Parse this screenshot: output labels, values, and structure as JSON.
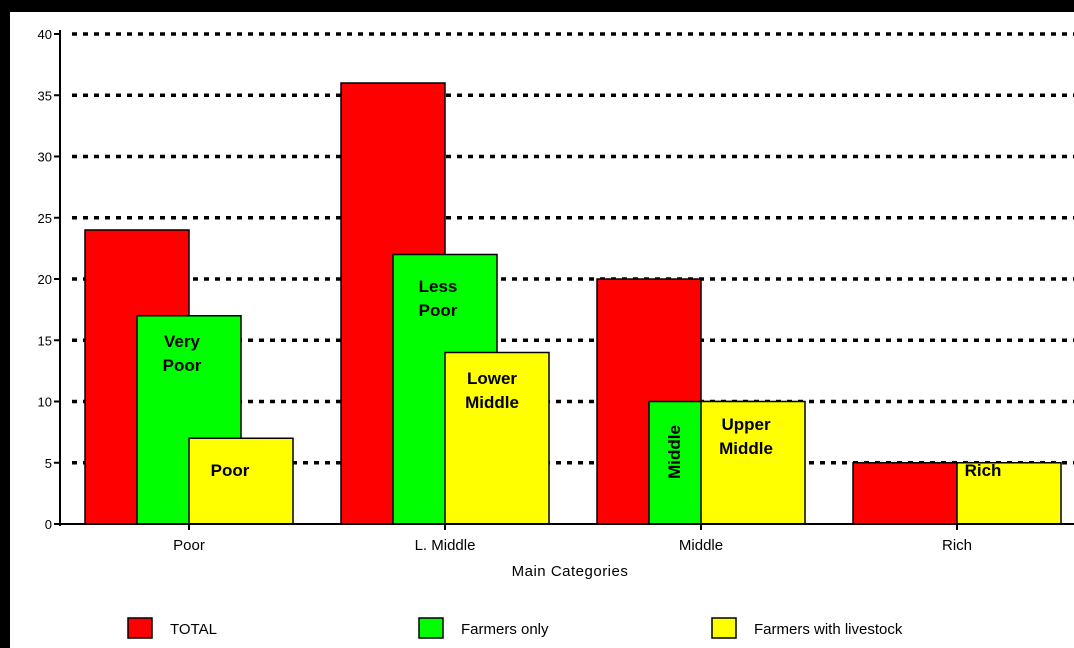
{
  "chart_data": {
    "type": "bar",
    "title": "",
    "xlabel": "Main Categories",
    "ylabel": "",
    "ylim": [
      0,
      40
    ],
    "yticks": [
      0,
      5,
      10,
      15,
      20,
      25,
      30,
      35,
      40
    ],
    "grid": true,
    "legend_position": "bottom",
    "categories": [
      "Poor",
      "L. Middle",
      "Middle",
      "Rich"
    ],
    "series": [
      {
        "name": "TOTAL",
        "color": "#ff0000",
        "values": [
          24,
          36,
          20,
          5
        ],
        "labels": [
          "",
          "",
          "",
          ""
        ]
      },
      {
        "name": "Farmers only",
        "color": "#00ff00",
        "values": [
          17,
          22,
          10,
          null
        ],
        "labels": [
          "Very Poor",
          "Less Poor",
          "Middle",
          ""
        ]
      },
      {
        "name": "Farmers with livestock",
        "color": "#ffff00",
        "values": [
          7,
          14,
          10,
          5
        ],
        "labels": [
          "Poor",
          "Lower Middle",
          "Upper Middle",
          "Rich"
        ]
      }
    ]
  }
}
